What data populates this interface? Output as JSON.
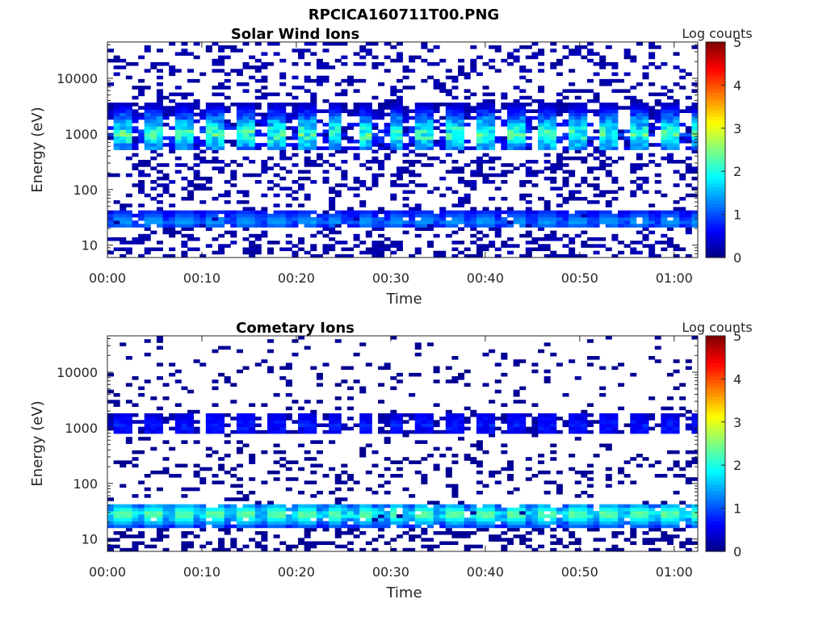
{
  "figure": {
    "title": "RPCICA160711T00.PNG"
  },
  "chart_data": [
    {
      "type": "heatmap",
      "title": "Solar Wind Ions",
      "xlabel": "Time",
      "ylabel": "Energy (eV)",
      "x_ticks": [
        "00:00",
        "00:10",
        "00:20",
        "00:30",
        "00:40",
        "00:50",
        "01:00"
      ],
      "x_tick_minutes": [
        0,
        10,
        20,
        30,
        40,
        50,
        60
      ],
      "xlim_minutes": [
        0,
        62.5
      ],
      "y_scale": "log",
      "y_ticks": [
        "10",
        "100",
        "1000",
        "10000"
      ],
      "y_tick_values": [
        10,
        100,
        1000,
        10000
      ],
      "ylim": [
        6,
        45000
      ],
      "colorbar": {
        "label": "Log counts",
        "ticks": [
          "0",
          "1",
          "2",
          "3",
          "4",
          "5"
        ],
        "range": [
          0,
          5
        ],
        "colormap": "jet"
      },
      "grid": false,
      "sweep_period_minutes": 3.2,
      "main_band": {
        "energy_range_eV": [
          500,
          3500
        ],
        "peak_energy_eV": 1000,
        "peak_log_counts": 2.7
      },
      "low_band": {
        "energy_range_eV": [
          20,
          40
        ],
        "peak_energy_eV": 27,
        "peak_log_counts": 1.5
      },
      "background_log_counts": 0.2
    },
    {
      "type": "heatmap",
      "title": "Cometary Ions",
      "xlabel": "Time",
      "ylabel": "Energy (eV)",
      "x_ticks": [
        "00:00",
        "00:10",
        "00:20",
        "00:30",
        "00:40",
        "00:50",
        "01:00"
      ],
      "x_tick_minutes": [
        0,
        10,
        20,
        30,
        40,
        50,
        60
      ],
      "xlim_minutes": [
        0,
        62.5
      ],
      "y_scale": "log",
      "y_ticks": [
        "10",
        "100",
        "1000",
        "10000"
      ],
      "y_tick_values": [
        10,
        100,
        1000,
        10000
      ],
      "ylim": [
        6,
        45000
      ],
      "colorbar": {
        "label": "Log counts",
        "ticks": [
          "0",
          "1",
          "2",
          "3",
          "4",
          "5"
        ],
        "range": [
          0,
          5
        ],
        "colormap": "jet"
      },
      "grid": false,
      "sweep_period_minutes": 3.2,
      "main_band": {
        "energy_range_eV": [
          800,
          1800
        ],
        "peak_energy_eV": 1100,
        "peak_log_counts": 0.9
      },
      "low_band": {
        "energy_range_eV": [
          15,
          45
        ],
        "peak_energy_eV": 28,
        "peak_log_counts": 2.6
      },
      "background_log_counts": 0.1
    }
  ]
}
